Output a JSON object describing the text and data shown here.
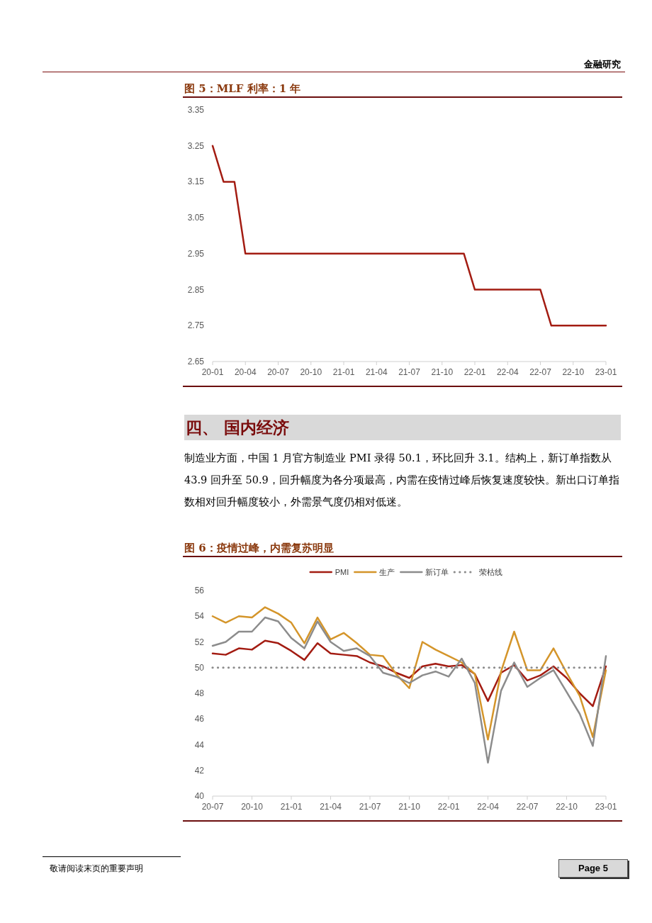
{
  "chart_data": [
    {
      "type": "other",
      "annotations": [
        "金融研究"
      ]
    },
    {
      "type": "line",
      "title": "图 5：MLF 利率：1 年",
      "categories": [
        "20-01",
        null,
        null,
        "20-04",
        null,
        null,
        "20-07",
        null,
        null,
        "20-10",
        null,
        null,
        "21-01",
        null,
        null,
        "21-04",
        null,
        null,
        "21-07",
        null,
        null,
        "21-10",
        null,
        null,
        "22-01",
        null,
        null,
        "22-04",
        null,
        null,
        "22-07",
        null,
        null,
        "22-10",
        null,
        null,
        "23-01"
      ],
      "values": [
        3.25,
        3.15,
        3.15,
        2.95,
        2.95,
        2.95,
        2.95,
        2.95,
        2.95,
        2.95,
        2.95,
        2.95,
        2.95,
        2.95,
        2.95,
        2.95,
        2.95,
        2.95,
        2.95,
        2.95,
        2.95,
        2.95,
        2.95,
        2.95,
        2.85,
        2.85,
        2.85,
        2.85,
        2.85,
        2.85,
        2.85,
        2.75,
        2.75,
        2.75,
        2.75,
        2.75,
        2.75
      ],
      "color": "#a31c12",
      "ylim": [
        2.65,
        3.35
      ],
      "yticks": [
        2.65,
        2.75,
        2.85,
        2.95,
        3.05,
        3.15,
        3.25,
        3.35
      ],
      "grid": false,
      "legend": false
    },
    {
      "type": "other",
      "title": "四、 国内经济",
      "annotations": [
        "制造业方面，中国 1 月官方制造业 PMI 录得 50.1，环比回升 3.1。结构上，新订单指数从 43.9 回升至 50.9，回升幅度为各分项最高，内需在疫情过峰后恢复速度较快。新出口订单指数相对回升幅度较小，外需景气度仍相对低迷。"
      ]
    },
    {
      "type": "line",
      "title": "图 6：疫情过峰，内需复苏明显",
      "categories": [
        "20-07",
        null,
        null,
        "20-10",
        null,
        null,
        "21-01",
        null,
        null,
        "21-04",
        null,
        null,
        "21-07",
        null,
        null,
        "21-10",
        null,
        null,
        "22-01",
        null,
        null,
        "22-04",
        null,
        null,
        "22-07",
        null,
        null,
        "22-10",
        null,
        null,
        "23-01"
      ],
      "series": [
        {
          "name": "PMI",
          "color": "#a31c12",
          "values": [
            51.1,
            51.0,
            51.5,
            51.4,
            52.1,
            51.9,
            51.3,
            50.6,
            51.9,
            51.1,
            51.0,
            50.9,
            50.4,
            50.1,
            49.6,
            49.2,
            50.1,
            50.3,
            50.1,
            50.2,
            49.5,
            47.4,
            49.6,
            50.2,
            49.0,
            49.4,
            50.1,
            49.2,
            48.0,
            47.0,
            50.1
          ]
        },
        {
          "name": "生产",
          "color": "#d4952a",
          "values": [
            54.0,
            53.5,
            54.0,
            53.9,
            54.7,
            54.2,
            53.5,
            51.9,
            53.9,
            52.2,
            52.7,
            51.9,
            51.0,
            50.9,
            49.5,
            48.4,
            52.0,
            51.4,
            50.9,
            50.4,
            49.5,
            44.4,
            49.7,
            52.8,
            49.8,
            49.8,
            51.5,
            49.6,
            47.8,
            44.6,
            49.8
          ]
        },
        {
          "name": "新订单",
          "color": "#8c8c8c",
          "values": [
            51.7,
            52.0,
            52.8,
            52.8,
            53.9,
            53.6,
            52.3,
            51.5,
            53.6,
            52.0,
            51.3,
            51.5,
            50.9,
            49.6,
            49.3,
            48.8,
            49.4,
            49.7,
            49.3,
            50.7,
            48.8,
            42.6,
            48.2,
            50.4,
            48.5,
            49.2,
            49.8,
            48.1,
            46.4,
            43.9,
            50.9
          ]
        },
        {
          "name": "荣枯线",
          "color": "#8c8c8c",
          "line_style": "dotted",
          "values": [
            50,
            50,
            50,
            50,
            50,
            50,
            50,
            50,
            50,
            50,
            50,
            50,
            50,
            50,
            50,
            50,
            50,
            50,
            50,
            50,
            50,
            50,
            50,
            50,
            50,
            50,
            50,
            50,
            50,
            50,
            50
          ]
        }
      ],
      "ylim": [
        40,
        56
      ],
      "yticks": [
        40,
        42,
        44,
        46,
        48,
        50,
        52,
        54,
        56
      ],
      "grid": false,
      "legend": "top"
    },
    {
      "type": "other",
      "annotations": [
        "敬请阅读末页的重要声明",
        "Page 5"
      ]
    }
  ]
}
